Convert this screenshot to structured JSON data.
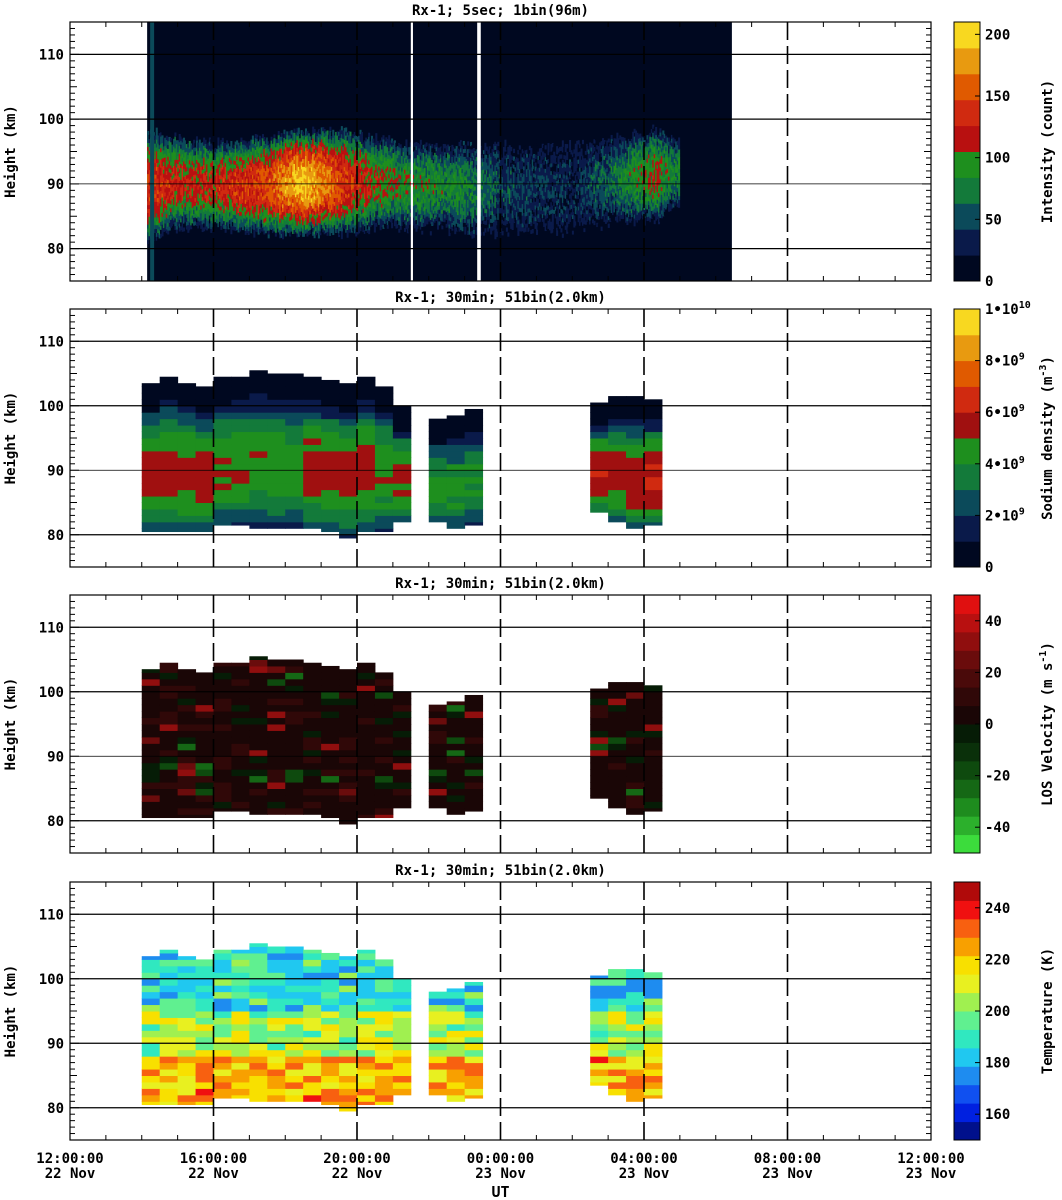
{
  "figure": {
    "xlabel": "UT"
  },
  "x_ticks": [
    {
      "t": 0,
      "time": "12:00:00",
      "date": "22 Nov"
    },
    {
      "t": 4,
      "time": "16:00:00",
      "date": "22 Nov"
    },
    {
      "t": 8,
      "time": "20:00:00",
      "date": "22 Nov"
    },
    {
      "t": 12,
      "time": "00:00:00",
      "date": "23 Nov"
    },
    {
      "t": 16,
      "time": "04:00:00",
      "date": "23 Nov"
    },
    {
      "t": 20,
      "time": "08:00:00",
      "date": "23 Nov"
    },
    {
      "t": 24,
      "time": "12:00:00",
      "date": "23 Nov"
    }
  ],
  "chart_data": [
    {
      "type": "heatmap",
      "title": "Rx-1;  5sec; 1bin(96m)",
      "ylabel": "Height (km)",
      "ylim": [
        75,
        115
      ],
      "y_ticks": [
        "80",
        "90",
        "100",
        "110"
      ],
      "colorbar": {
        "label": "Intensity (count)",
        "range": [
          0,
          210
        ],
        "ticks": [
          {
            "v": 0,
            "label": "0"
          },
          {
            "v": 50,
            "label": "50"
          },
          {
            "v": 100,
            "label": "100"
          },
          {
            "v": 150,
            "label": "150"
          },
          {
            "v": 200,
            "label": "200"
          }
        ],
        "colors": [
          "#000820",
          "#0a1a4a",
          "#0b4a5a",
          "#137a3a",
          "#1e8f1e",
          "#b81010",
          "#d02a10",
          "#e05a00",
          "#e89a10",
          "#f8d820"
        ]
      },
      "observation_window_h": [
        2.15,
        18.45
      ],
      "layer_profile": [
        {
          "t": 2.3,
          "top": 98,
          "bottom": 81,
          "peak": 140
        },
        {
          "t": 3.0,
          "top": 97,
          "bottom": 83,
          "peak": 120
        },
        {
          "t": 4.0,
          "top": 96,
          "bottom": 83,
          "peak": 125
        },
        {
          "t": 5.5,
          "top": 97,
          "bottom": 82,
          "peak": 150
        },
        {
          "t": 6.5,
          "top": 98,
          "bottom": 82,
          "peak": 200
        },
        {
          "t": 7.5,
          "top": 98,
          "bottom": 82,
          "peak": 150
        },
        {
          "t": 8.5,
          "top": 97,
          "bottom": 83,
          "peak": 110
        },
        {
          "t": 9.5,
          "top": 96,
          "bottom": 83,
          "peak": 90
        },
        {
          "t": 11.0,
          "top": 96,
          "bottom": 82,
          "peak": 80
        },
        {
          "t": 12.0,
          "top": 96,
          "bottom": 82,
          "peak": 50
        },
        {
          "t": 14.0,
          "top": 96,
          "bottom": 82,
          "peak": 30
        },
        {
          "t": 15.2,
          "top": 97,
          "bottom": 84,
          "peak": 70
        },
        {
          "t": 16.3,
          "top": 98,
          "bottom": 84,
          "peak": 110
        },
        {
          "t": 16.8,
          "top": 97,
          "bottom": 86,
          "peak": 80
        }
      ]
    },
    {
      "type": "heatmap",
      "title": "Rx-1; 30min; 51bin(2.0km)",
      "ylabel": "Height (km)",
      "ylim": [
        75,
        115
      ],
      "y_ticks": [
        "80",
        "90",
        "100",
        "110"
      ],
      "colorbar": {
        "label": "Sodium density (m^-3)",
        "range": [
          0,
          10000000000.0
        ],
        "ticks": [
          {
            "v": 0,
            "label": "0"
          },
          {
            "v": 2000000000.0,
            "label": "2•10^9"
          },
          {
            "v": 4000000000.0,
            "label": "4•10^9"
          },
          {
            "v": 6000000000.0,
            "label": "6•10^9"
          },
          {
            "v": 8000000000.0,
            "label": "8•10^9"
          },
          {
            "v": 10000000000.0,
            "label": "1•10^10"
          }
        ],
        "colors": [
          "#000820",
          "#0a1a4a",
          "#0b4a5a",
          "#137a3a",
          "#1e8f1e",
          "#a01010",
          "#d02a10",
          "#e05a00",
          "#e89a10",
          "#f8d820"
        ]
      },
      "columns": [
        {
          "t0": 2.0,
          "top": 103.5,
          "bottom": 80.5,
          "peak": 5500000000.0
        },
        {
          "t0": 2.5,
          "top": 104.5,
          "bottom": 80.5,
          "peak": 5500000000.0
        },
        {
          "t0": 3.0,
          "top": 103.5,
          "bottom": 80.5,
          "peak": 5500000000.0
        },
        {
          "t0": 3.5,
          "top": 103.0,
          "bottom": 80.5,
          "peak": 5500000000.0
        },
        {
          "t0": 4.0,
          "top": 104.5,
          "bottom": 81.5,
          "peak": 5200000000.0
        },
        {
          "t0": 4.5,
          "top": 104.5,
          "bottom": 81.5,
          "peak": 5000000000.0
        },
        {
          "t0": 5.0,
          "top": 105.5,
          "bottom": 81.0,
          "peak": 4800000000.0
        },
        {
          "t0": 5.5,
          "top": 105.0,
          "bottom": 81.0,
          "peak": 4800000000.0
        },
        {
          "t0": 6.0,
          "top": 105.0,
          "bottom": 81.0,
          "peak": 4600000000.0
        },
        {
          "t0": 6.5,
          "top": 104.5,
          "bottom": 81.0,
          "peak": 5600000000.0
        },
        {
          "t0": 7.0,
          "top": 104.0,
          "bottom": 80.5,
          "peak": 5400000000.0
        },
        {
          "t0": 7.5,
          "top": 103.5,
          "bottom": 79.5,
          "peak": 5400000000.0
        },
        {
          "t0": 8.0,
          "top": 104.5,
          "bottom": 80.5,
          "peak": 5600000000.0
        },
        {
          "t0": 8.5,
          "top": 103.0,
          "bottom": 80.5,
          "peak": 5000000000.0
        },
        {
          "t0": 9.0,
          "top": 100.0,
          "bottom": 82.0,
          "peak": 5400000000.0
        },
        {
          "t0": 10.0,
          "top": 98.0,
          "bottom": 82.0,
          "peak": 4600000000.0
        },
        {
          "t0": 10.5,
          "top": 98.5,
          "bottom": 81.0,
          "peak": 4400000000.0
        },
        {
          "t0": 11.0,
          "top": 99.5,
          "bottom": 81.5,
          "peak": 4200000000.0
        },
        {
          "t0": 14.5,
          "top": 100.5,
          "bottom": 83.5,
          "peak": 6200000000.0
        },
        {
          "t0": 15.0,
          "top": 101.5,
          "bottom": 82.0,
          "peak": 5600000000.0
        },
        {
          "t0": 15.5,
          "top": 101.5,
          "bottom": 81.0,
          "peak": 5600000000.0
        },
        {
          "t0": 16.0,
          "top": 101.0,
          "bottom": 81.5,
          "peak": 6200000000.0
        }
      ]
    },
    {
      "type": "heatmap",
      "title": "Rx-1; 30min; 51bin(2.0km)",
      "ylabel": "Height (km)",
      "ylim": [
        75,
        115
      ],
      "y_ticks": [
        "80",
        "90",
        "100",
        "110"
      ],
      "colorbar": {
        "label": "LOS Velocity (m s^-1)",
        "range": [
          -50,
          50
        ],
        "ticks": [
          {
            "v": -40,
            "label": "-40"
          },
          {
            "v": -20,
            "label": "-20"
          },
          {
            "v": 0,
            "label": "0"
          },
          {
            "v": 20,
            "label": "20"
          },
          {
            "v": 40,
            "label": "40"
          }
        ],
        "colors": [
          "#3cdc3c",
          "#2cb02c",
          "#1e8c1e",
          "#156815",
          "#0e4a0e",
          "#0a300a",
          "#061c06",
          "#1a0606",
          "#300808",
          "#4a0a0a",
          "#6a0c0c",
          "#900e0e",
          "#b81010",
          "#e01010"
        ]
      },
      "columns": [
        {
          "t0": 2.0,
          "top": 103.5,
          "bottom": 80.5,
          "v": 4
        },
        {
          "t0": 2.5,
          "top": 104.5,
          "bottom": 80.5,
          "v": 4
        },
        {
          "t0": 3.0,
          "top": 103.5,
          "bottom": 80.5,
          "v": 4
        },
        {
          "t0": 3.5,
          "top": 103.0,
          "bottom": 80.5,
          "v": 4
        },
        {
          "t0": 4.0,
          "top": 104.5,
          "bottom": 81.5,
          "v": 4
        },
        {
          "t0": 4.5,
          "top": 104.5,
          "bottom": 81.5,
          "v": 4
        },
        {
          "t0": 5.0,
          "top": 105.5,
          "bottom": 81.0,
          "v": 4
        },
        {
          "t0": 5.5,
          "top": 105.0,
          "bottom": 81.0,
          "v": 4
        },
        {
          "t0": 6.0,
          "top": 105.0,
          "bottom": 81.0,
          "v": 4
        },
        {
          "t0": 6.5,
          "top": 104.5,
          "bottom": 81.0,
          "v": 4
        },
        {
          "t0": 7.0,
          "top": 104.0,
          "bottom": 80.5,
          "v": 4
        },
        {
          "t0": 7.5,
          "top": 103.5,
          "bottom": 79.5,
          "v": 4
        },
        {
          "t0": 8.0,
          "top": 104.5,
          "bottom": 80.5,
          "v": 4
        },
        {
          "t0": 8.5,
          "top": 103.0,
          "bottom": 80.5,
          "v": 4
        },
        {
          "t0": 9.0,
          "top": 100.0,
          "bottom": 82.0,
          "v": 4
        },
        {
          "t0": 10.0,
          "top": 98.0,
          "bottom": 82.0,
          "v": 4
        },
        {
          "t0": 10.5,
          "top": 98.5,
          "bottom": 81.0,
          "v": 4
        },
        {
          "t0": 11.0,
          "top": 99.5,
          "bottom": 81.5,
          "v": 4
        },
        {
          "t0": 14.5,
          "top": 100.5,
          "bottom": 83.5,
          "v": 4
        },
        {
          "t0": 15.0,
          "top": 101.5,
          "bottom": 82.0,
          "v": 4
        },
        {
          "t0": 15.5,
          "top": 101.5,
          "bottom": 81.0,
          "v": 4
        },
        {
          "t0": 16.0,
          "top": 101.0,
          "bottom": 81.5,
          "v": 4
        }
      ]
    },
    {
      "type": "heatmap",
      "title": "Rx-1; 30min; 51bin(2.0km)",
      "ylabel": "Height (km)",
      "ylim": [
        75,
        115
      ],
      "y_ticks": [
        "80",
        "90",
        "100",
        "110"
      ],
      "colorbar": {
        "label": "Temperature (K)",
        "range": [
          150,
          250
        ],
        "ticks": [
          {
            "v": 160,
            "label": "160"
          },
          {
            "v": 180,
            "label": "180"
          },
          {
            "v": 200,
            "label": "200"
          },
          {
            "v": 220,
            "label": "220"
          },
          {
            "v": 240,
            "label": "240"
          }
        ],
        "colors": [
          "#00108c",
          "#0020e0",
          "#1050f0",
          "#1e8cf0",
          "#20c8f0",
          "#30e8c0",
          "#60f090",
          "#a0f050",
          "#e8f020",
          "#f8e000",
          "#f8a000",
          "#f86010",
          "#f01010",
          "#b00a0a"
        ]
      },
      "columns": [
        {
          "t0": 2.0,
          "top": 103.5,
          "bottom": 80.5
        },
        {
          "t0": 2.5,
          "top": 104.5,
          "bottom": 80.5
        },
        {
          "t0": 3.0,
          "top": 103.5,
          "bottom": 80.5
        },
        {
          "t0": 3.5,
          "top": 103.0,
          "bottom": 80.5
        },
        {
          "t0": 4.0,
          "top": 104.5,
          "bottom": 81.5
        },
        {
          "t0": 4.5,
          "top": 104.5,
          "bottom": 81.5
        },
        {
          "t0": 5.0,
          "top": 105.5,
          "bottom": 81.0
        },
        {
          "t0": 5.5,
          "top": 105.0,
          "bottom": 81.0
        },
        {
          "t0": 6.0,
          "top": 105.0,
          "bottom": 81.0
        },
        {
          "t0": 6.5,
          "top": 104.5,
          "bottom": 81.0
        },
        {
          "t0": 7.0,
          "top": 104.0,
          "bottom": 80.5
        },
        {
          "t0": 7.5,
          "top": 103.5,
          "bottom": 79.5
        },
        {
          "t0": 8.0,
          "top": 104.5,
          "bottom": 80.5
        },
        {
          "t0": 8.5,
          "top": 103.0,
          "bottom": 80.5
        },
        {
          "t0": 9.0,
          "top": 100.0,
          "bottom": 82.0
        },
        {
          "t0": 10.0,
          "top": 98.0,
          "bottom": 82.0
        },
        {
          "t0": 10.5,
          "top": 98.5,
          "bottom": 81.0
        },
        {
          "t0": 11.0,
          "top": 99.5,
          "bottom": 81.5
        },
        {
          "t0": 14.5,
          "top": 100.5,
          "bottom": 83.5
        },
        {
          "t0": 15.0,
          "top": 101.5,
          "bottom": 82.0
        },
        {
          "t0": 15.5,
          "top": 101.5,
          "bottom": 81.0
        },
        {
          "t0": 16.0,
          "top": 101.0,
          "bottom": 81.5
        }
      ]
    }
  ]
}
